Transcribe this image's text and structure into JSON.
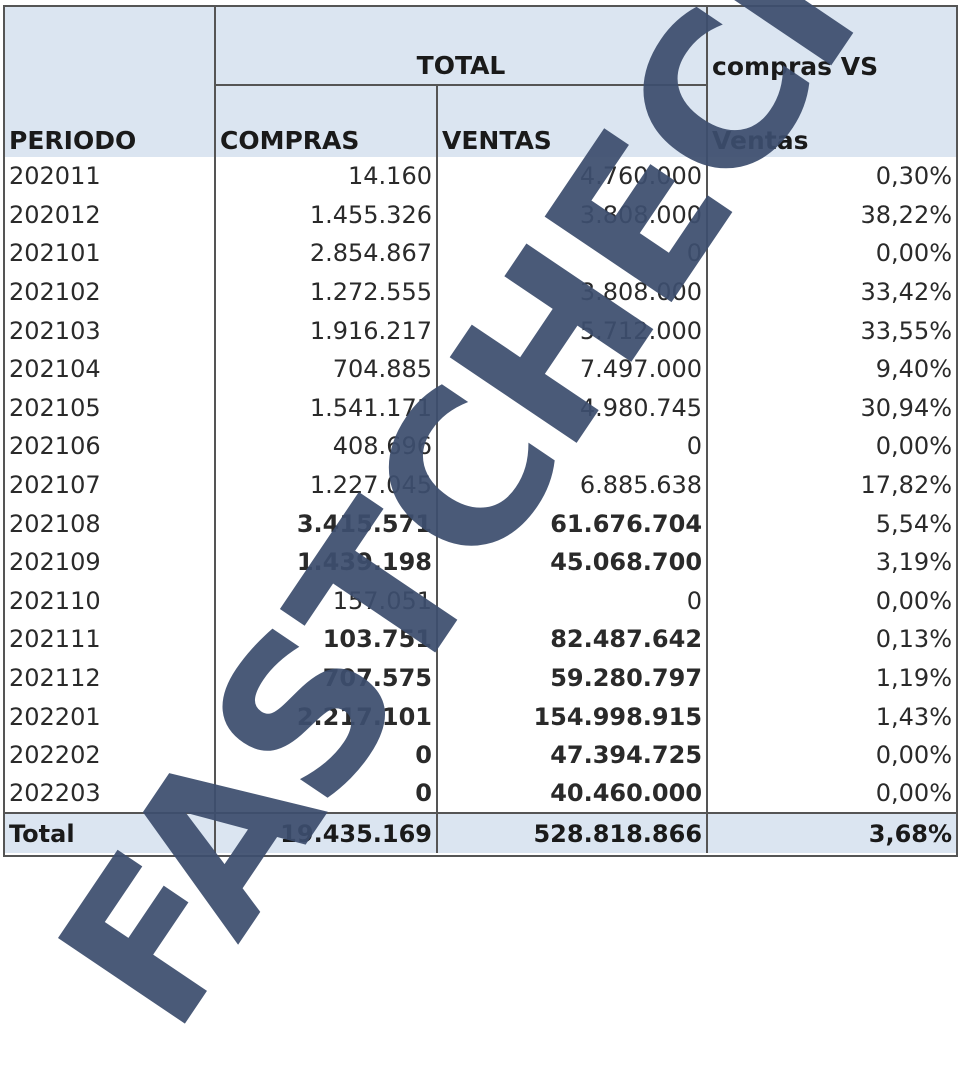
{
  "header": {
    "period": "PERIODO",
    "total": "TOTAL",
    "compras": "COMPRAS",
    "ventas": "VENTAS",
    "vs_line1": "compras VS",
    "vs_line2": "Ventas"
  },
  "rows": [
    {
      "periodo": "202011",
      "compras": "14.160",
      "ventas": "4.760.000",
      "pct": "0,30%",
      "bold": false
    },
    {
      "periodo": "202012",
      "compras": "1.455.326",
      "ventas": "3.808.000",
      "pct": "38,22%",
      "bold": false
    },
    {
      "periodo": "202101",
      "compras": "2.854.867",
      "ventas": "0",
      "pct": "0,00%",
      "bold": false
    },
    {
      "periodo": "202102",
      "compras": "1.272.555",
      "ventas": "3.808.000",
      "pct": "33,42%",
      "bold": false
    },
    {
      "periodo": "202103",
      "compras": "1.916.217",
      "ventas": "5.712.000",
      "pct": "33,55%",
      "bold": false
    },
    {
      "periodo": "202104",
      "compras": "704.885",
      "ventas": "7.497.000",
      "pct": "9,40%",
      "bold": false
    },
    {
      "periodo": "202105",
      "compras": "1.541.171",
      "ventas": "4.980.745",
      "pct": "30,94%",
      "bold": false
    },
    {
      "periodo": "202106",
      "compras": "408.696",
      "ventas": "0",
      "pct": "0,00%",
      "bold": false
    },
    {
      "periodo": "202107",
      "compras": "1.227.045",
      "ventas": "6.885.638",
      "pct": "17,82%",
      "bold": false
    },
    {
      "periodo": "202108",
      "compras": "3.415.571",
      "ventas": "61.676.704",
      "pct": "5,54%",
      "bold": true
    },
    {
      "periodo": "202109",
      "compras": "1.439.198",
      "ventas": "45.068.700",
      "pct": "3,19%",
      "bold": true
    },
    {
      "periodo": "202110",
      "compras": "157.051",
      "ventas": "0",
      "pct": "0,00%",
      "bold": false
    },
    {
      "periodo": "202111",
      "compras": "103.751",
      "ventas": "82.487.642",
      "pct": "0,13%",
      "bold": true
    },
    {
      "periodo": "202112",
      "compras": "707.575",
      "ventas": "59.280.797",
      "pct": "1,19%",
      "bold": true
    },
    {
      "periodo": "202201",
      "compras": "2.217.101",
      "ventas": "154.998.915",
      "pct": "1,43%",
      "bold": true
    },
    {
      "periodo": "202202",
      "compras": "0",
      "ventas": "47.394.725",
      "pct": "0,00%",
      "bold": true
    },
    {
      "periodo": "202203",
      "compras": "0",
      "ventas": "40.460.000",
      "pct": "0,00%",
      "bold": true
    }
  ],
  "total": {
    "label": "Total",
    "compras": "19.435.169",
    "ventas": "528.818.866",
    "pct": "3,68%"
  },
  "watermark": "FASTCHECK"
}
